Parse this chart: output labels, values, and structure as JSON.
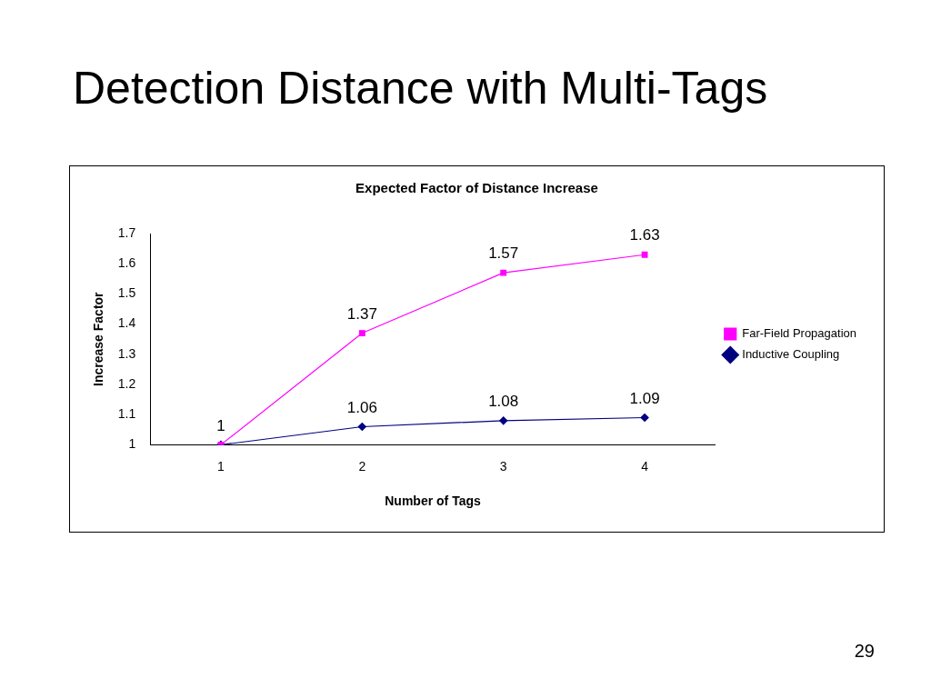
{
  "chart_data": {
    "type": "line",
    "title": "Detection Distance with Multi-Tags",
    "subtitle": "Expected Factor of Distance Increase",
    "xlabel": "Number of Tags",
    "ylabel": "Increase Factor",
    "categories": [
      "1",
      "2",
      "3",
      "4"
    ],
    "series": [
      {
        "name": "Far-Field Propagation",
        "color": "#ff00ff",
        "values": [
          1,
          1.37,
          1.57,
          1.63
        ],
        "marker": "square",
        "value_labels": [
          null,
          "1.37",
          "1.57",
          "1.63"
        ]
      },
      {
        "name": "Inductive Coupling",
        "color": "#000080",
        "values": [
          1,
          1.06,
          1.08,
          1.09
        ],
        "marker": "diamond",
        "value_labels": [
          "1",
          "1.06",
          "1.08",
          "1.09"
        ]
      }
    ],
    "ylim": [
      1,
      1.7
    ],
    "yticks": [
      1,
      1.1,
      1.2,
      1.3,
      1.4,
      1.5,
      1.6,
      1.7
    ],
    "grid": false,
    "legend": "right",
    "line_style": "solid",
    "annotations": [
      "29"
    ]
  }
}
